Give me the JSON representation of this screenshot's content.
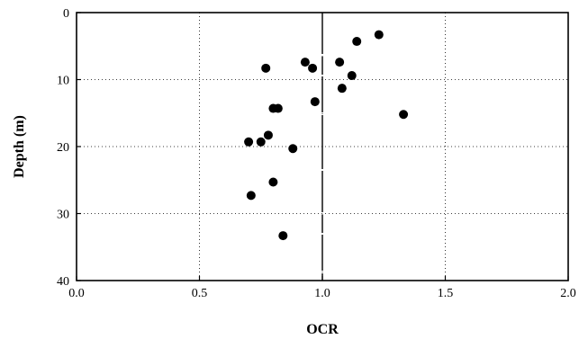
{
  "chart_data": {
    "type": "scatter",
    "xlabel": "OCR",
    "ylabel": "Depth  (m)",
    "xlim": [
      0.0,
      2.0
    ],
    "ylim": [
      0,
      40
    ],
    "y_inverted": true,
    "x_ticks": [
      "0.0",
      "0.5",
      "1.0",
      "1.5",
      "2.0"
    ],
    "x_tick_values": [
      0.0,
      0.5,
      1.0,
      1.5,
      2.0
    ],
    "y_ticks": [
      "0",
      "10",
      "20",
      "30",
      "40"
    ],
    "y_tick_values": [
      0,
      10,
      20,
      30,
      40
    ],
    "grid": true,
    "reference_line_x": 1.0,
    "marker_color": "#000000",
    "points": [
      {
        "x": 1.23,
        "y": 3.3
      },
      {
        "x": 1.14,
        "y": 4.3
      },
      {
        "x": 0.77,
        "y": 8.3
      },
      {
        "x": 0.93,
        "y": 7.4
      },
      {
        "x": 0.96,
        "y": 8.3
      },
      {
        "x": 1.07,
        "y": 7.4
      },
      {
        "x": 1.12,
        "y": 9.4
      },
      {
        "x": 1.08,
        "y": 11.3
      },
      {
        "x": 0.97,
        "y": 13.3
      },
      {
        "x": 0.8,
        "y": 14.3
      },
      {
        "x": 0.82,
        "y": 14.3
      },
      {
        "x": 1.33,
        "y": 15.2
      },
      {
        "x": 0.78,
        "y": 18.3
      },
      {
        "x": 0.7,
        "y": 19.3
      },
      {
        "x": 0.75,
        "y": 19.3
      },
      {
        "x": 0.88,
        "y": 20.3
      },
      {
        "x": 0.8,
        "y": 25.3
      },
      {
        "x": 0.71,
        "y": 27.3
      },
      {
        "x": 0.84,
        "y": 33.3
      }
    ]
  }
}
